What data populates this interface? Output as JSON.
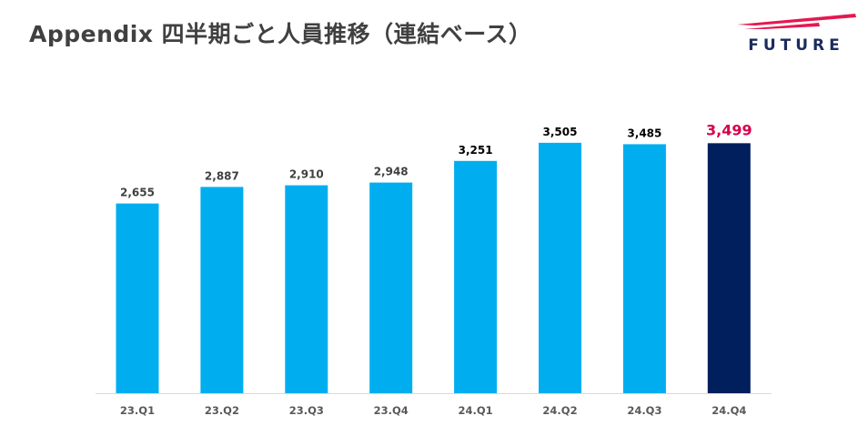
{
  "header": {
    "title": "Appendix 四半期ごと人員推移（連結ベース）",
    "logo_text": "FUTURE"
  },
  "colors": {
    "bar": "#00AEEF",
    "highlight_bar": "#001F5C",
    "highlight_label": "#D6004B",
    "label_gray": "#404040",
    "label_black": "#000000",
    "axis_label": "#595959",
    "logo_red": "#E5184F",
    "logo_navy": "#1B2B5E"
  },
  "chart_data": {
    "type": "bar",
    "title": "",
    "xlabel": "",
    "ylabel": "",
    "ylim": [
      0,
      4000
    ],
    "grid": false,
    "categories": [
      "23.Q1",
      "23.Q2",
      "23.Q3",
      "23.Q4",
      "24.Q1",
      "24.Q2",
      "24.Q3",
      "24.Q4"
    ],
    "values": [
      2655,
      2887,
      2910,
      2948,
      3251,
      3505,
      3485,
      3499
    ],
    "data_labels": [
      "2,655",
      "2,887",
      "2,910",
      "2,948",
      "3,251",
      "3,505",
      "3,485",
      "3,499"
    ],
    "highlight_index": 7
  }
}
